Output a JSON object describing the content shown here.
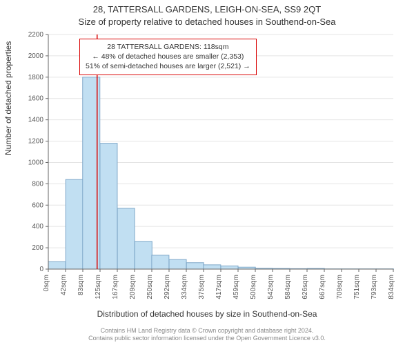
{
  "title_line1": "28, TATTERSALL GARDENS, LEIGH-ON-SEA, SS9 2QT",
  "title_line2": "Size of property relative to detached houses in Southend-on-Sea",
  "ylabel": "Number of detached properties",
  "xlabel": "Distribution of detached houses by size in Southend-on-Sea",
  "footer_line1": "Contains HM Land Registry data © Crown copyright and database right 2024.",
  "footer_line2": "Contains public sector information licensed under the Open Government Licence v3.0.",
  "chart": {
    "type": "histogram",
    "background_color": "#ffffff",
    "plot_bg_color": "#ffffff",
    "grid_color": "#e4e4e4",
    "axis_color": "#666666",
    "tick_color": "#666666",
    "tick_label_color": "#555555",
    "tick_fontsize": 10,
    "bar_fill": "#c1dff2",
    "bar_stroke": "#7fa8c9",
    "bar_stroke_width": 1,
    "marker_line_color": "#d90000",
    "marker_line_width": 1.5,
    "marker_value": 118,
    "ylim": [
      0,
      2200
    ],
    "ytick_step": 200,
    "xlim_labels": [
      "0sqm",
      "42sqm",
      "83sqm",
      "125sqm",
      "167sqm",
      "209sqm",
      "250sqm",
      "292sqm",
      "334sqm",
      "375sqm",
      "417sqm",
      "459sqm",
      "500sqm",
      "542sqm",
      "584sqm",
      "626sqm",
      "667sqm",
      "709sqm",
      "751sqm",
      "793sqm",
      "834sqm"
    ],
    "xlim": [
      0,
      834
    ],
    "bar_width_units": 41.7,
    "bars": [
      {
        "x0": 0,
        "value": 70
      },
      {
        "x0": 42,
        "value": 840
      },
      {
        "x0": 83,
        "value": 1800
      },
      {
        "x0": 125,
        "value": 1180
      },
      {
        "x0": 167,
        "value": 570
      },
      {
        "x0": 209,
        "value": 260
      },
      {
        "x0": 250,
        "value": 130
      },
      {
        "x0": 292,
        "value": 90
      },
      {
        "x0": 334,
        "value": 60
      },
      {
        "x0": 375,
        "value": 40
      },
      {
        "x0": 417,
        "value": 30
      },
      {
        "x0": 459,
        "value": 18
      },
      {
        "x0": 500,
        "value": 8
      },
      {
        "x0": 542,
        "value": 6
      },
      {
        "x0": 584,
        "value": 4
      },
      {
        "x0": 626,
        "value": 6
      },
      {
        "x0": 667,
        "value": 2
      },
      {
        "x0": 709,
        "value": 2
      },
      {
        "x0": 751,
        "value": 2
      },
      {
        "x0": 793,
        "value": 2
      }
    ]
  },
  "annotation": {
    "line1": "28 TATTERSALL GARDENS: 118sqm",
    "line2": "← 48% of detached houses are smaller (2,353)",
    "line3": "51% of semi-detached houses are larger (2,521) →",
    "border_color": "#d90000",
    "bg_color": "#ffffff",
    "fontsize": 10.5
  }
}
